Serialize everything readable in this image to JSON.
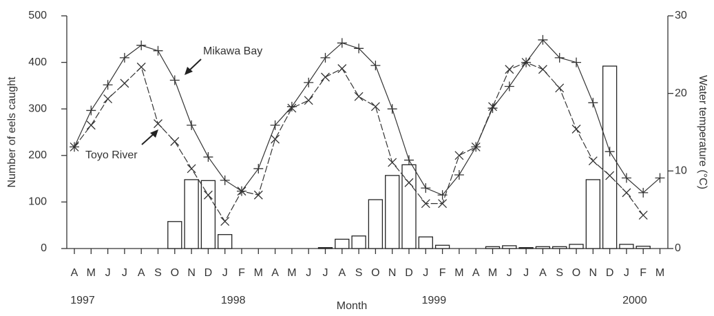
{
  "chart_data": {
    "type": "bar",
    "y_label": "Number of eels caught",
    "y2_label": "Water temperature (°C)",
    "x_label": "Month",
    "categories": [
      "A",
      "M",
      "J",
      "J",
      "A",
      "S",
      "O",
      "N",
      "D",
      "J",
      "F",
      "M",
      "A",
      "M",
      "J",
      "J",
      "A",
      "S",
      "O",
      "N",
      "D",
      "J",
      "F",
      "M",
      "A",
      "M",
      "J",
      "J",
      "A",
      "S",
      "O",
      "N",
      "D",
      "J",
      "F",
      "M"
    ],
    "year_labels": [
      "1997",
      null,
      null,
      null,
      null,
      null,
      null,
      null,
      null,
      "1998",
      null,
      null,
      null,
      null,
      null,
      null,
      null,
      null,
      null,
      null,
      null,
      "1999",
      null,
      null,
      null,
      null,
      null,
      null,
      null,
      null,
      null,
      null,
      null,
      "2000",
      null,
      null
    ],
    "series": [
      {
        "type": "bar",
        "color": "#222222",
        "values": [
          0,
          0,
          0,
          0,
          0,
          0,
          58,
          148,
          146,
          30,
          0,
          0,
          0,
          0,
          0,
          2,
          20,
          27,
          105,
          157,
          180,
          25,
          7,
          0,
          0,
          4,
          6,
          2,
          4,
          4,
          9,
          148,
          392,
          9,
          5,
          0
        ]
      },
      {
        "name": "Mikawa Bay",
        "type": "line",
        "axis": "y2",
        "marker": "plus",
        "dashed": false,
        "color": "#333333",
        "values": [
          13.1,
          17.8,
          21.1,
          24.6,
          26.2,
          25.5,
          21.7,
          15.9,
          11.8,
          8.8,
          7.4,
          10.3,
          15.9,
          18.3,
          21.4,
          24.6,
          26.5,
          25.8,
          23.6,
          18.0,
          11.4,
          7.8,
          6.9,
          9.5,
          13.1,
          18.1,
          20.9,
          24.0,
          26.9,
          24.6,
          24.0,
          18.8,
          12.5,
          9.1,
          7.2,
          9.1
        ]
      },
      {
        "name": "Toyo River",
        "type": "line",
        "axis": "y2",
        "marker": "cross",
        "dashed": true,
        "color": "#333333",
        "values": [
          13.1,
          15.9,
          19.3,
          21.3,
          23.4,
          16.1,
          13.8,
          10.3,
          6.9,
          3.5,
          7.4,
          6.9,
          14.1,
          18.1,
          19.1,
          22.1,
          23.2,
          19.6,
          18.3,
          11.1,
          8.5,
          5.8,
          5.8,
          12.0,
          13.1,
          18.3,
          23.1,
          24.0,
          23.1,
          20.7,
          15.4,
          11.3,
          9.4,
          7.2,
          4.3,
          null
        ]
      }
    ],
    "ylim": [
      0,
      500
    ],
    "yticks": [
      0,
      100,
      200,
      300,
      400,
      500
    ],
    "y2lim": [
      0,
      30
    ],
    "y2ticks": [
      0,
      10,
      20,
      30
    ]
  }
}
